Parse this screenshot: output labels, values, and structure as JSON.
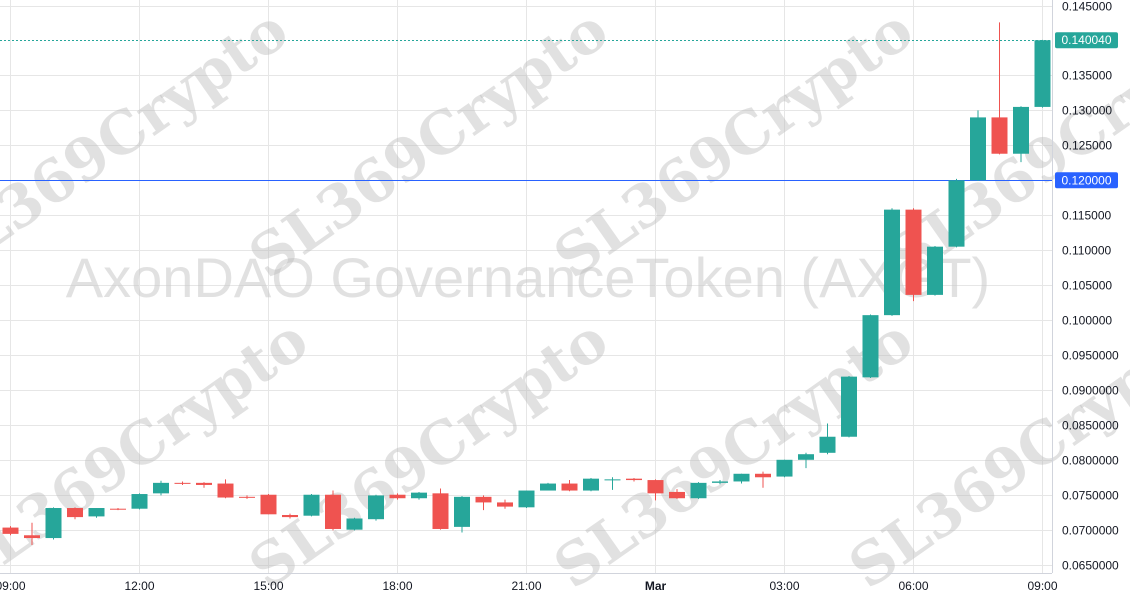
{
  "watermark": {
    "title": "AxonDAO GovernanceToken (AXGT)",
    "stamp": "SL369Crypto"
  },
  "colors": {
    "up": "#26a69a",
    "down": "#ef5350",
    "grid": "#e6e6e6",
    "text": "#131722",
    "level_line": "#2962ff",
    "last_price_line": "#26a69a"
  },
  "chart_data": {
    "type": "candlestick",
    "title": "",
    "x_ticks": [
      "09:00",
      "12:00",
      "15:00",
      "18:00",
      "21:00",
      "Mar",
      "03:00",
      "06:00",
      "09:00"
    ],
    "y_ticks": [
      "0.145000",
      "0.140040",
      "0.135000",
      "0.130000",
      "0.125000",
      "0.120000",
      "0.115000",
      "0.110000",
      "0.105000",
      "0.100000",
      "0.0950000",
      "0.0900000",
      "0.0850000",
      "0.0800000",
      "0.0750000",
      "0.0700000",
      "0.0650000"
    ],
    "ylim": [
      0.0638,
      0.1458
    ],
    "interval_minutes": 30,
    "first_candle_time": "09:00",
    "last_price": 0.14004,
    "last_price_label": "0.140040",
    "horizontal_level": 0.12,
    "horizontal_level_label": "0.120000",
    "grid": true,
    "candles": [
      {
        "o": 0.0703,
        "h": 0.0705,
        "l": 0.0692,
        "c": 0.0694
      },
      {
        "o": 0.0692,
        "h": 0.071,
        "l": 0.0678,
        "c": 0.0688
      },
      {
        "o": 0.0688,
        "h": 0.0732,
        "l": 0.0686,
        "c": 0.0731
      },
      {
        "o": 0.0731,
        "h": 0.0732,
        "l": 0.0715,
        "c": 0.0718
      },
      {
        "o": 0.0719,
        "h": 0.0731,
        "l": 0.0717,
        "c": 0.0731
      },
      {
        "o": 0.073,
        "h": 0.0731,
        "l": 0.0728,
        "c": 0.0729
      },
      {
        "o": 0.073,
        "h": 0.0752,
        "l": 0.0729,
        "c": 0.0751
      },
      {
        "o": 0.0752,
        "h": 0.077,
        "l": 0.0749,
        "c": 0.0767
      },
      {
        "o": 0.0767,
        "h": 0.0769,
        "l": 0.0764,
        "c": 0.0766
      },
      {
        "o": 0.0767,
        "h": 0.0768,
        "l": 0.076,
        "c": 0.0764
      },
      {
        "o": 0.0766,
        "h": 0.0772,
        "l": 0.0745,
        "c": 0.0746
      },
      {
        "o": 0.0747,
        "h": 0.0749,
        "l": 0.0744,
        "c": 0.0746
      },
      {
        "o": 0.075,
        "h": 0.0751,
        "l": 0.0722,
        "c": 0.0722
      },
      {
        "o": 0.0721,
        "h": 0.0723,
        "l": 0.0716,
        "c": 0.0718
      },
      {
        "o": 0.072,
        "h": 0.0751,
        "l": 0.0719,
        "c": 0.075
      },
      {
        "o": 0.075,
        "h": 0.0756,
        "l": 0.0699,
        "c": 0.0701
      },
      {
        "o": 0.07,
        "h": 0.0717,
        "l": 0.0699,
        "c": 0.0716
      },
      {
        "o": 0.0715,
        "h": 0.075,
        "l": 0.0713,
        "c": 0.0749
      },
      {
        "o": 0.075,
        "h": 0.0752,
        "l": 0.0743,
        "c": 0.0745
      },
      {
        "o": 0.0745,
        "h": 0.0754,
        "l": 0.0743,
        "c": 0.0753
      },
      {
        "o": 0.0752,
        "h": 0.0759,
        "l": 0.07,
        "c": 0.0701
      },
      {
        "o": 0.0704,
        "h": 0.0748,
        "l": 0.0696,
        "c": 0.0747
      },
      {
        "o": 0.0747,
        "h": 0.0749,
        "l": 0.0728,
        "c": 0.0739
      },
      {
        "o": 0.0739,
        "h": 0.0743,
        "l": 0.073,
        "c": 0.0733
      },
      {
        "o": 0.0732,
        "h": 0.0756,
        "l": 0.0731,
        "c": 0.0756
      },
      {
        "o": 0.0756,
        "h": 0.0767,
        "l": 0.0756,
        "c": 0.0766
      },
      {
        "o": 0.0766,
        "h": 0.0771,
        "l": 0.0755,
        "c": 0.0756
      },
      {
        "o": 0.0756,
        "h": 0.0774,
        "l": 0.0755,
        "c": 0.0773
      },
      {
        "o": 0.0771,
        "h": 0.0775,
        "l": 0.0757,
        "c": 0.0772
      },
      {
        "o": 0.0773,
        "h": 0.0774,
        "l": 0.0769,
        "c": 0.0771
      },
      {
        "o": 0.0771,
        "h": 0.0772,
        "l": 0.0742,
        "c": 0.0752
      },
      {
        "o": 0.0754,
        "h": 0.0758,
        "l": 0.0744,
        "c": 0.0745
      },
      {
        "o": 0.0745,
        "h": 0.0768,
        "l": 0.0744,
        "c": 0.0767
      },
      {
        "o": 0.0767,
        "h": 0.0771,
        "l": 0.0765,
        "c": 0.0769
      },
      {
        "o": 0.0769,
        "h": 0.078,
        "l": 0.0766,
        "c": 0.078
      },
      {
        "o": 0.078,
        "h": 0.0783,
        "l": 0.076,
        "c": 0.0775
      },
      {
        "o": 0.0776,
        "h": 0.08,
        "l": 0.0775,
        "c": 0.08
      },
      {
        "o": 0.08,
        "h": 0.081,
        "l": 0.0788,
        "c": 0.0808
      },
      {
        "o": 0.081,
        "h": 0.0852,
        "l": 0.0808,
        "c": 0.0833
      },
      {
        "o": 0.0833,
        "h": 0.092,
        "l": 0.0832,
        "c": 0.0919
      },
      {
        "o": 0.0918,
        "h": 0.1008,
        "l": 0.0917,
        "c": 0.1007
      },
      {
        "o": 0.1007,
        "h": 0.116,
        "l": 0.1006,
        "c": 0.1158
      },
      {
        "o": 0.1158,
        "h": 0.116,
        "l": 0.1027,
        "c": 0.1036
      },
      {
        "o": 0.1036,
        "h": 0.1106,
        "l": 0.1035,
        "c": 0.1105
      },
      {
        "o": 0.1105,
        "h": 0.1202,
        "l": 0.1104,
        "c": 0.12
      },
      {
        "o": 0.12,
        "h": 0.13,
        "l": 0.1199,
        "c": 0.129
      },
      {
        "o": 0.129,
        "h": 0.1426,
        "l": 0.1237,
        "c": 0.1238
      },
      {
        "o": 0.1238,
        "h": 0.1306,
        "l": 0.1226,
        "c": 0.1305
      },
      {
        "o": 0.1305,
        "h": 0.1401,
        "l": 0.1304,
        "c": 0.14004
      }
    ]
  }
}
